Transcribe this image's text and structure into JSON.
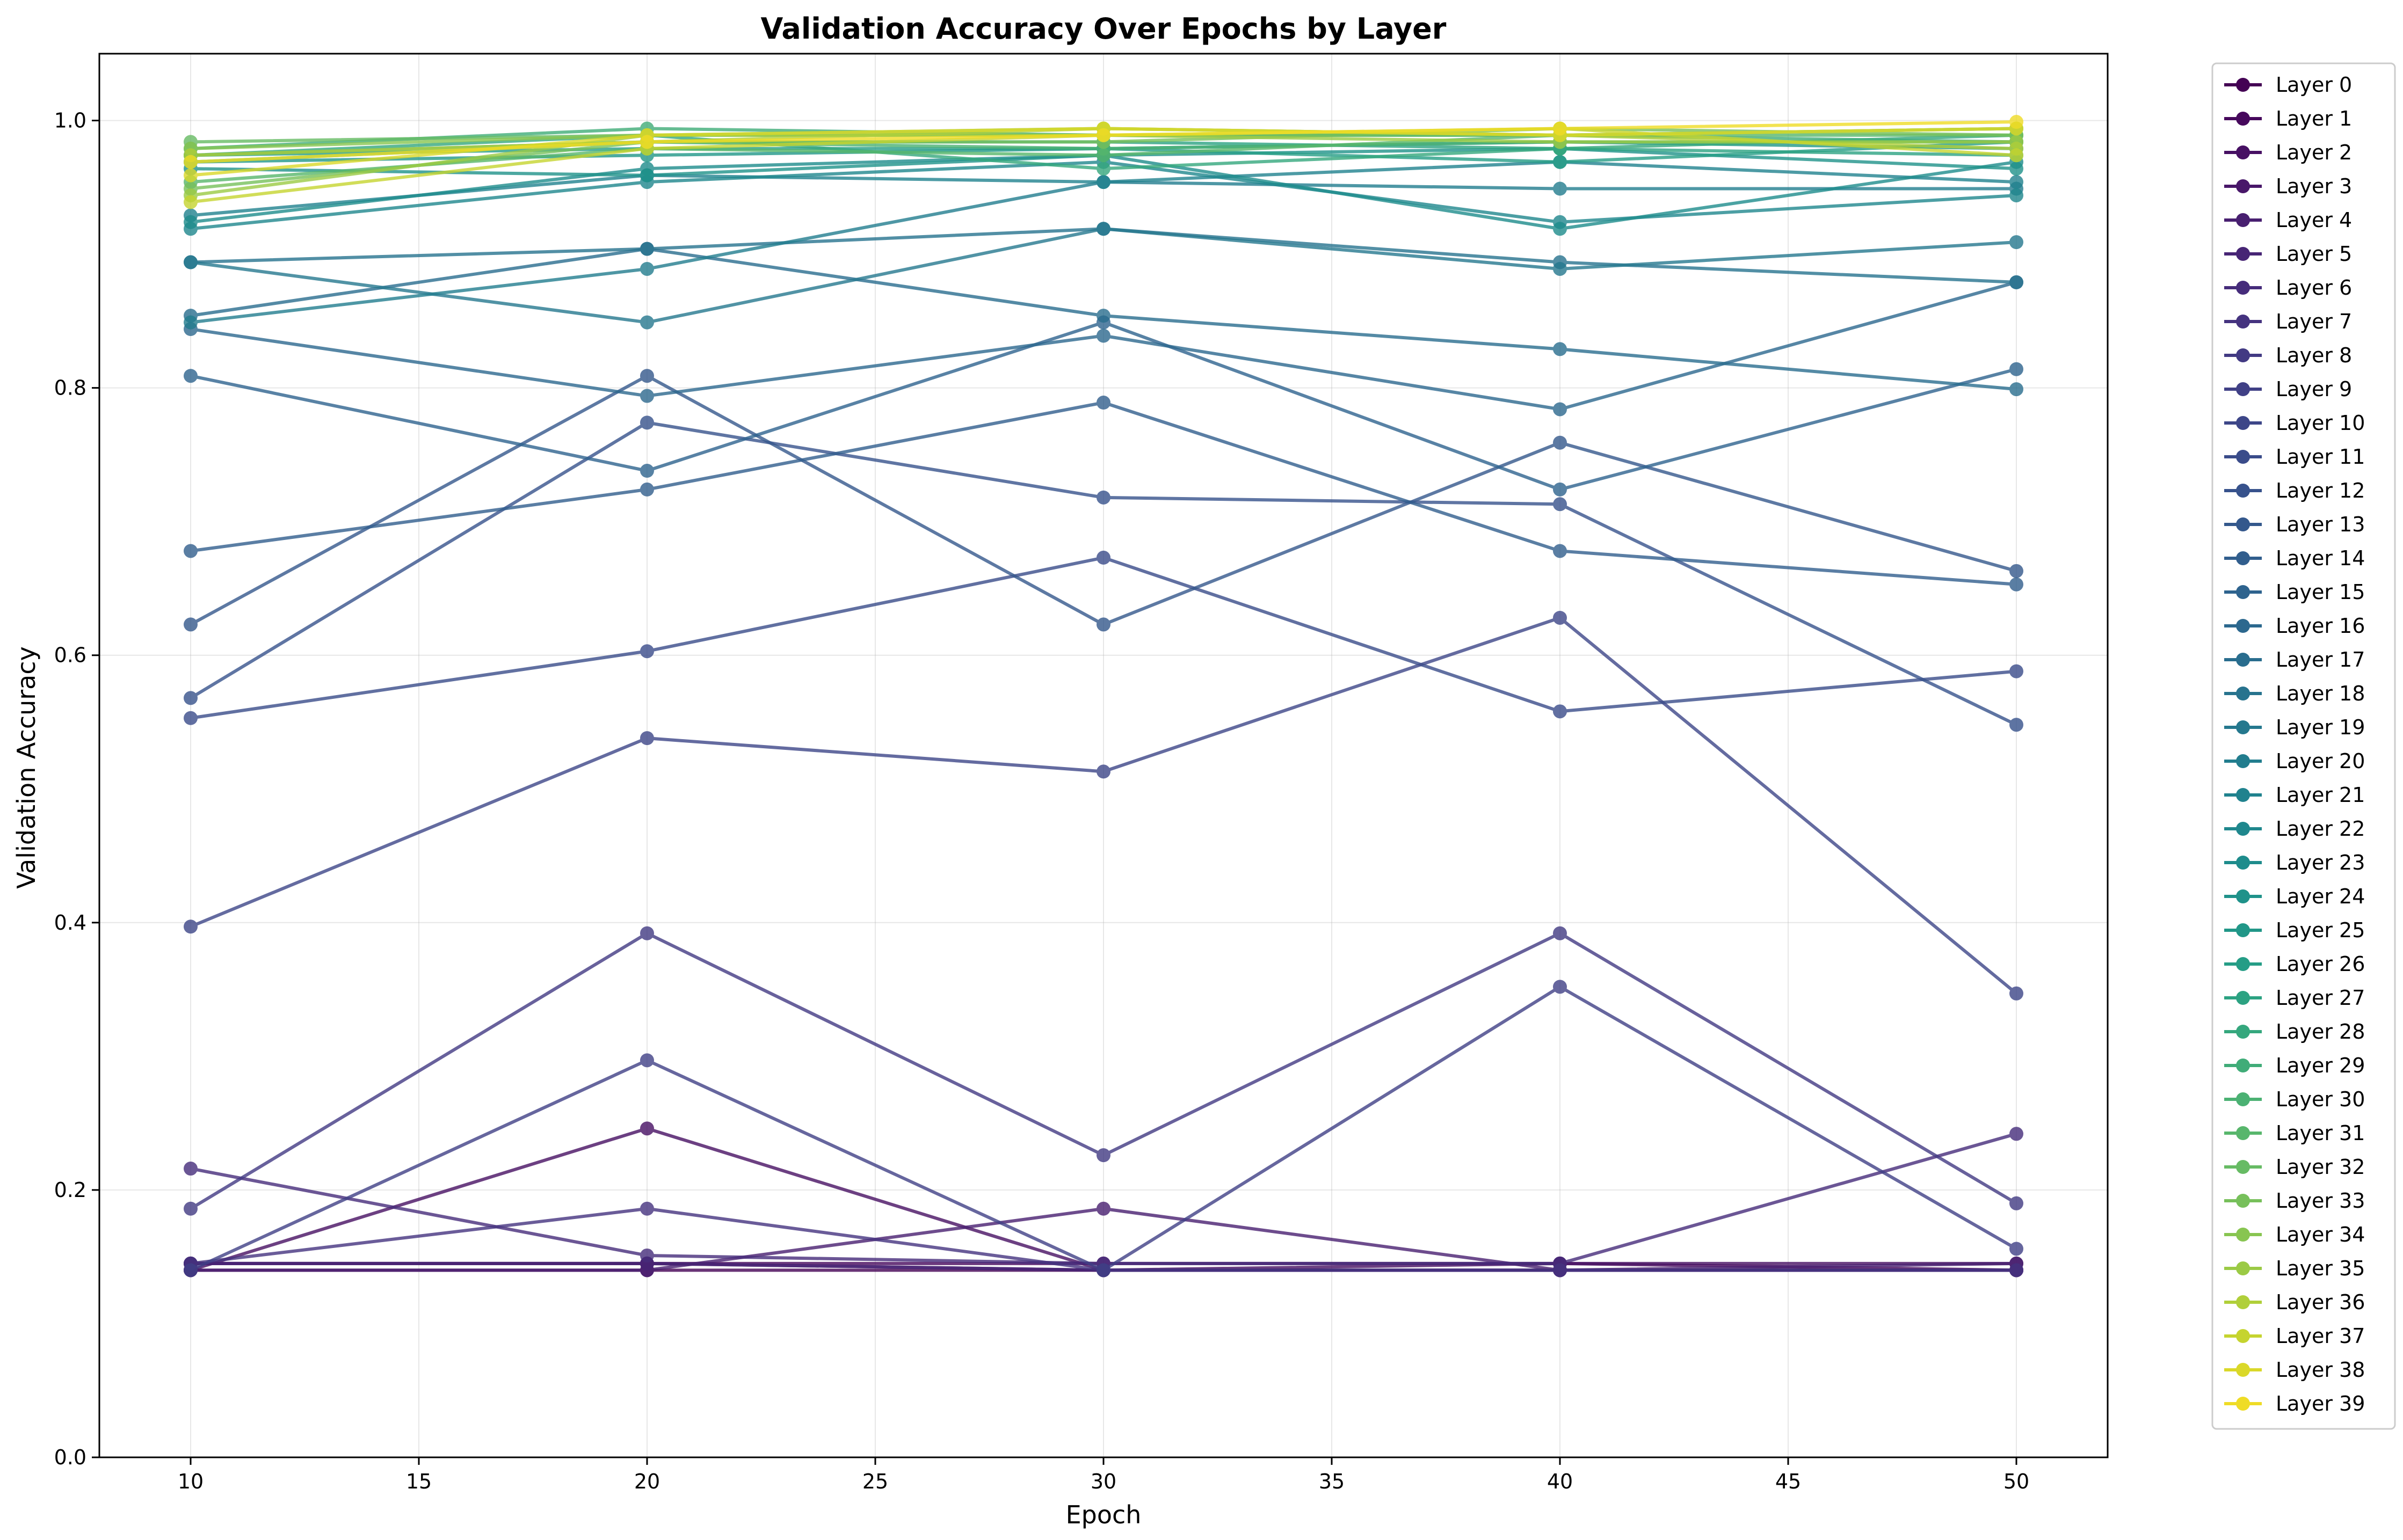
{
  "chart_data": {
    "type": "line",
    "title": "Validation Accuracy Over Epochs by Layer",
    "xlabel": "Epoch",
    "ylabel": "Validation Accuracy",
    "xlim": [
      8,
      52
    ],
    "ylim": [
      0,
      1.05
    ],
    "x": [
      10,
      20,
      30,
      40,
      50
    ],
    "xticks": [
      10,
      15,
      20,
      25,
      30,
      35,
      40,
      45,
      50
    ],
    "yticks": [
      0.0,
      0.2,
      0.4,
      0.6,
      0.8,
      1.0
    ],
    "xtick_labels": [
      "10",
      "15",
      "20",
      "25",
      "30",
      "35",
      "40",
      "45",
      "50"
    ],
    "ytick_labels": [
      "0.0",
      "0.2",
      "0.4",
      "0.6",
      "0.8",
      "1.0"
    ],
    "grid": true,
    "legend_position": "outside-right",
    "colormap": "viridis",
    "series": [
      {
        "name": "Layer 0",
        "color": "#440154",
        "values": [
          0.14,
          0.14,
          0.14,
          0.14,
          0.14
        ]
      },
      {
        "name": "Layer 1",
        "color": "#46085c",
        "values": [
          0.145,
          0.145,
          0.145,
          0.145,
          0.14
        ]
      },
      {
        "name": "Layer 2",
        "color": "#471063",
        "values": [
          0.14,
          0.246,
          0.14,
          0.145,
          0.145
        ]
      },
      {
        "name": "Layer 3",
        "color": "#481769",
        "values": [
          0.145,
          0.145,
          0.14,
          0.14,
          0.14
        ]
      },
      {
        "name": "Layer 4",
        "color": "#481f70",
        "values": [
          0.14,
          0.14,
          0.186,
          0.14,
          0.145
        ]
      },
      {
        "name": "Layer 5",
        "color": "#472575",
        "values": [
          0.145,
          0.145,
          0.14,
          0.14,
          0.14
        ]
      },
      {
        "name": "Layer 6",
        "color": "#462c7b",
        "values": [
          0.216,
          0.151,
          0.145,
          0.145,
          0.242
        ]
      },
      {
        "name": "Layer 7",
        "color": "#45337f",
        "values": [
          0.145,
          0.186,
          0.14,
          0.14,
          0.14
        ]
      },
      {
        "name": "Layer 8",
        "color": "#423a83",
        "values": [
          0.186,
          0.392,
          0.226,
          0.392,
          0.19
        ]
      },
      {
        "name": "Layer 9",
        "color": "#404086",
        "values": [
          0.14,
          0.297,
          0.14,
          0.352,
          0.156
        ]
      },
      {
        "name": "Layer 10",
        "color": "#3d4688",
        "values": [
          0.397,
          0.538,
          0.513,
          0.628,
          0.347
        ]
      },
      {
        "name": "Layer 11",
        "color": "#3a4c8a",
        "values": [
          0.553,
          0.603,
          0.673,
          0.558,
          0.588
        ]
      },
      {
        "name": "Layer 12",
        "color": "#37528c",
        "values": [
          0.568,
          0.774,
          0.718,
          0.713,
          0.548
        ]
      },
      {
        "name": "Layer 13",
        "color": "#34588c",
        "values": [
          0.623,
          0.809,
          0.623,
          0.759,
          0.663
        ]
      },
      {
        "name": "Layer 14",
        "color": "#315e8d",
        "values": [
          0.678,
          0.724,
          0.789,
          0.678,
          0.653
        ]
      },
      {
        "name": "Layer 15",
        "color": "#2e638e",
        "values": [
          0.809,
          0.738,
          0.849,
          0.724,
          0.814
        ]
      },
      {
        "name": "Layer 16",
        "color": "#2c688e",
        "values": [
          0.844,
          0.794,
          0.839,
          0.784,
          0.879
        ]
      },
      {
        "name": "Layer 17",
        "color": "#296d8e",
        "values": [
          0.854,
          0.904,
          0.854,
          0.829,
          0.799
        ]
      },
      {
        "name": "Layer 18",
        "color": "#27738e",
        "values": [
          0.894,
          0.904,
          0.919,
          0.894,
          0.879
        ]
      },
      {
        "name": "Layer 19",
        "color": "#25788e",
        "values": [
          0.894,
          0.849,
          0.919,
          0.889,
          0.909
        ]
      },
      {
        "name": "Layer 20",
        "color": "#227d8e",
        "values": [
          0.849,
          0.889,
          0.954,
          0.949,
          0.949
        ]
      },
      {
        "name": "Layer 21",
        "color": "#20828e",
        "values": [
          0.929,
          0.959,
          0.954,
          0.969,
          0.954
        ]
      },
      {
        "name": "Layer 22",
        "color": "#1f878d",
        "values": [
          0.919,
          0.954,
          0.969,
          0.924,
          0.944
        ]
      },
      {
        "name": "Layer 23",
        "color": "#1e8c8c",
        "values": [
          0.924,
          0.964,
          0.974,
          0.919,
          0.969
        ]
      },
      {
        "name": "Layer 24",
        "color": "#1f928a",
        "values": [
          0.964,
          0.959,
          0.974,
          0.979,
          0.964
        ]
      },
      {
        "name": "Layer 25",
        "color": "#219788",
        "values": [
          0.969,
          0.974,
          0.979,
          0.984,
          0.979
        ]
      },
      {
        "name": "Layer 26",
        "color": "#259d86",
        "values": [
          0.974,
          0.979,
          0.979,
          0.969,
          0.984
        ]
      },
      {
        "name": "Layer 27",
        "color": "#2ca282",
        "values": [
          0.974,
          0.984,
          0.984,
          0.979,
          0.974
        ]
      },
      {
        "name": "Layer 28",
        "color": "#35a77d",
        "values": [
          0.974,
          0.989,
          0.964,
          0.979,
          0.989
        ]
      },
      {
        "name": "Layer 29",
        "color": "#40ac78",
        "values": [
          0.979,
          0.994,
          0.989,
          0.989,
          0.984
        ]
      },
      {
        "name": "Layer 30",
        "color": "#4bb173",
        "values": [
          0.969,
          0.984,
          0.979,
          0.984,
          0.984
        ]
      },
      {
        "name": "Layer 31",
        "color": "#58b66c",
        "values": [
          0.954,
          0.979,
          0.974,
          0.989,
          0.989
        ]
      },
      {
        "name": "Layer 32",
        "color": "#67bb64",
        "values": [
          0.984,
          0.989,
          0.989,
          0.989,
          0.994
        ]
      },
      {
        "name": "Layer 33",
        "color": "#77c05b",
        "values": [
          0.949,
          0.984,
          0.984,
          0.994,
          0.989
        ]
      },
      {
        "name": "Layer 34",
        "color": "#88c551",
        "values": [
          0.979,
          0.989,
          0.994,
          0.989,
          0.994
        ]
      },
      {
        "name": "Layer 35",
        "color": "#9bca45",
        "values": [
          0.944,
          0.989,
          0.989,
          0.984,
          0.984
        ]
      },
      {
        "name": "Layer 36",
        "color": "#b0cf3a",
        "values": [
          0.974,
          0.984,
          0.994,
          0.989,
          0.979
        ]
      },
      {
        "name": "Layer 37",
        "color": "#c5d42f",
        "values": [
          0.939,
          0.979,
          0.989,
          0.994,
          0.974
        ]
      },
      {
        "name": "Layer 38",
        "color": "#dad829",
        "values": [
          0.959,
          0.989,
          0.994,
          0.989,
          0.994
        ]
      },
      {
        "name": "Layer 39",
        "color": "#efdc26",
        "values": [
          0.969,
          0.984,
          0.989,
          0.994,
          0.999
        ]
      }
    ]
  }
}
